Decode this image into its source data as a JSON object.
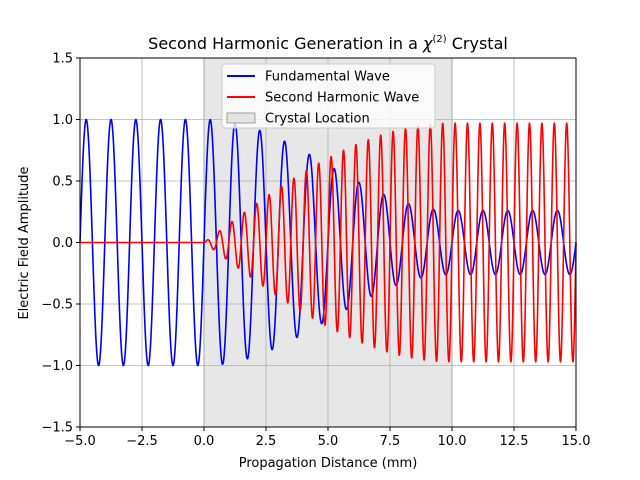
{
  "chart_data": {
    "type": "line",
    "title_main": "Second Harmonic Generation in a ",
    "title_chi": "χ",
    "title_sup": "(2)",
    "title_tail": " Crystal",
    "xlabel": "Propagation Distance (mm)",
    "ylabel": "Electric Field Amplitude",
    "xlim": [
      -5,
      15
    ],
    "ylim": [
      -1.5,
      1.5
    ],
    "xticks": [
      -5.0,
      -2.5,
      0.0,
      2.5,
      5.0,
      7.5,
      10.0,
      12.5,
      15.0
    ],
    "xtick_labels": [
      "−5.0",
      "−2.5",
      "0.0",
      "2.5",
      "5.0",
      "7.5",
      "10.0",
      "12.5",
      "15.0"
    ],
    "yticks": [
      -1.5,
      -1.0,
      -0.5,
      0.0,
      0.5,
      1.0,
      1.5
    ],
    "ytick_labels": [
      "−1.5",
      "−1.0",
      "−0.5",
      "0.0",
      "0.5",
      "1.0",
      "1.5"
    ],
    "grid": true,
    "legend_position": "top-center",
    "crystal_region": {
      "x_start": 0,
      "x_end": 10,
      "label": "Crystal Location",
      "color": "#d3d3d3"
    },
    "series": [
      {
        "name": "Fundamental Wave",
        "color": "#0000ff",
        "period_mm": 1.0,
        "amplitude_before_crystal": 1.0,
        "amplitude_after_crystal": 0.26
      },
      {
        "name": "Second Harmonic Wave",
        "color": "#ff0000",
        "period_mm": 0.5,
        "amplitude_before_crystal": 0.0,
        "amplitude_after_crystal": 0.97
      }
    ]
  }
}
